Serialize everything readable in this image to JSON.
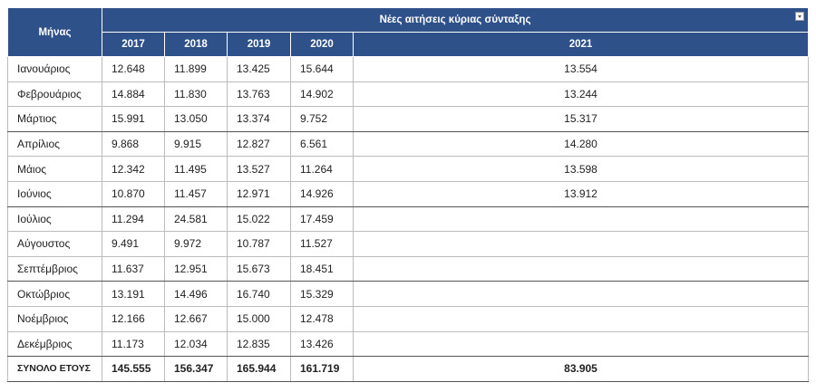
{
  "header": {
    "month_label": "Μήνας",
    "title": "Νέες αιτήσεις κύριας σύνταξης",
    "years": [
      "2017",
      "2018",
      "2019",
      "2020",
      "2021"
    ]
  },
  "table": {
    "rows": [
      [
        "Ιανουάριος",
        "12.648",
        "11.899",
        "13.425",
        "15.644",
        "13.554"
      ],
      [
        "Φεβρουάριος",
        "14.884",
        "11.830",
        "13.763",
        "14.902",
        "13.244"
      ],
      [
        "Μάρτιος",
        "15.991",
        "13.050",
        "13.374",
        "9.752",
        "15.317"
      ],
      [
        "Απρίλιος",
        "9.868",
        "9.915",
        "12.827",
        "6.561",
        "14.280"
      ],
      [
        "Μάιος",
        "12.342",
        "11.495",
        "13.527",
        "11.264",
        "13.598"
      ],
      [
        "Ιούνιος",
        "10.870",
        "11.457",
        "12.971",
        "14.926",
        "13.912"
      ],
      [
        "Ιούλιος",
        "11.294",
        "24.581",
        "15.022",
        "17.459"
      ],
      [
        "Αύγουστος",
        "9.491",
        "9.972",
        "10.787",
        "11.527"
      ],
      [
        "Σεπτέμβριος",
        "11.637",
        "12.951",
        "15.673",
        "18.451"
      ],
      [
        "Οκτώβριος",
        "13.191",
        "14.496",
        "16.740",
        "15.329"
      ],
      [
        "Νοέμβριος",
        "12.166",
        "12.667",
        "15.000",
        "12.478"
      ],
      [
        "Δεκέμβριος",
        "11.173",
        "12.034",
        "12.835",
        "13.426"
      ]
    ]
  },
  "total": {
    "label": "ΣΥΝΟΛΟ ΕΤΟΥΣ",
    "values": [
      "145.555",
      "156.347",
      "165.944",
      "161.719",
      "83.905"
    ]
  }
}
